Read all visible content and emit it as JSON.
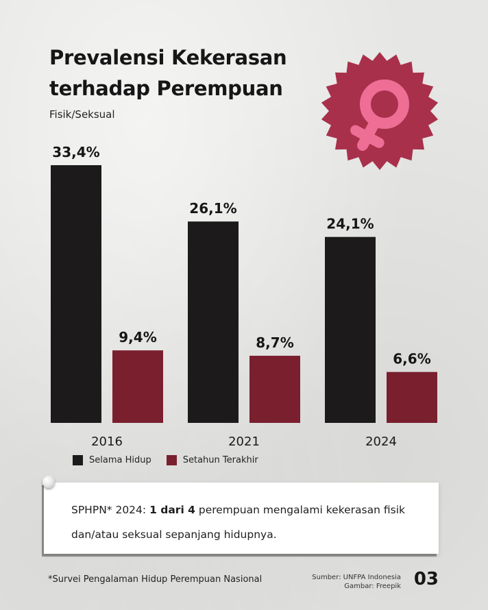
{
  "header": {
    "title_line1": "Prevalensi Kekerasan",
    "title_line2": "terhadap Perempuan",
    "subtitle": "Fisik/Seksual"
  },
  "chart_data": {
    "type": "bar",
    "categories": [
      "2016",
      "2021",
      "2024"
    ],
    "series": [
      {
        "name": "Selama Hidup",
        "values": [
          33.4,
          26.1,
          24.1
        ],
        "labels": [
          "33,4%",
          "26,1%",
          "24,1%"
        ],
        "color": "#1c1a1b"
      },
      {
        "name": "Setahun Terakhir",
        "values": [
          9.4,
          8.7,
          6.6
        ],
        "labels": [
          "9,4%",
          "8,7%",
          "6,6%"
        ],
        "color": "#7a1f2e"
      }
    ],
    "ylim": [
      0,
      33.4
    ],
    "legend": "bottom-left"
  },
  "badge": {
    "icon": "female-symbol-icon",
    "starburst_color": "#a8304b",
    "symbol_color": "#ee6e96"
  },
  "note": {
    "prefix": "SPHPN* 2024: ",
    "bold": "1 dari 4",
    "suffix": " perempuan mengalami kekerasan fisik dan/atau seksual sepanjang hidupnya."
  },
  "footer": {
    "footnote": "*Survei Pengalaman Hidup Perempuan Nasional",
    "source": "Sumber: UNFPA Indonesia",
    "image_credit": "Gambar: Freepik",
    "page_number": "03"
  }
}
